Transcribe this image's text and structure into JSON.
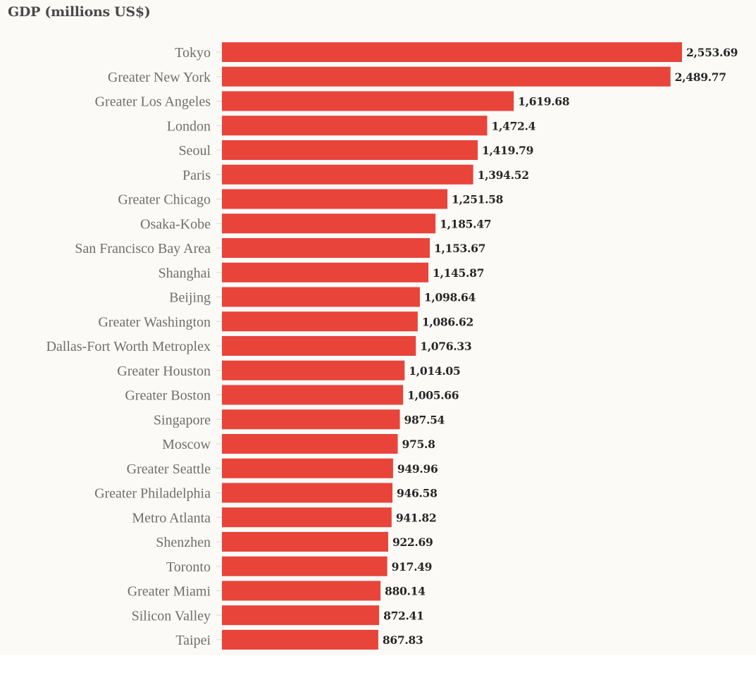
{
  "chart_data": {
    "type": "bar",
    "orientation": "horizontal",
    "title": "GDP (millions US$)",
    "xlabel": "",
    "ylabel": "",
    "xlim": [
      0,
      2553.69
    ],
    "grid": false,
    "legend": null,
    "bar_color": "#e8443a",
    "categories": [
      "Tokyo",
      "Greater New York",
      "Greater Los Angeles",
      "London",
      "Seoul",
      "Paris",
      "Greater Chicago",
      "Osaka-Kobe",
      "San Francisco Bay Area",
      "Shanghai",
      "Beijing",
      "Greater Washington",
      "Dallas-Fort Worth Metroplex",
      "Greater Houston",
      "Greater Boston",
      "Singapore",
      "Moscow",
      "Greater Seattle",
      "Greater Philadelphia",
      "Metro Atlanta",
      "Shenzhen",
      "Toronto",
      "Greater Miami",
      "Silicon Valley",
      "Taipei"
    ],
    "values": [
      2553.69,
      2489.77,
      1619.68,
      1472.4,
      1419.79,
      1394.52,
      1251.58,
      1185.47,
      1153.67,
      1145.87,
      1098.64,
      1086.62,
      1076.33,
      1014.05,
      1005.66,
      987.54,
      975.8,
      949.96,
      946.58,
      941.82,
      922.69,
      917.49,
      880.14,
      872.41,
      867.83
    ],
    "value_labels": [
      "2,553.69",
      "2,489.77",
      "1,619.68",
      "1,472.4",
      "1,419.79",
      "1,394.52",
      "1,251.58",
      "1,185.47",
      "1,153.67",
      "1,145.87",
      "1,098.64",
      "1,086.62",
      "1,076.33",
      "1,014.05",
      "1,005.66",
      "987.54",
      "975.8",
      "949.96",
      "946.58",
      "941.82",
      "922.69",
      "917.49",
      "880.14",
      "872.41",
      "867.83"
    ]
  }
}
